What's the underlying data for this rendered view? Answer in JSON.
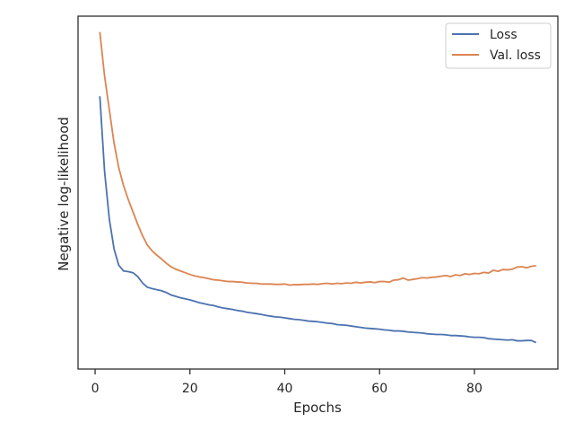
{
  "chart_data": {
    "type": "line",
    "title": "",
    "xlabel": "Epochs",
    "ylabel": "Negative log-likelihood",
    "xlim": [
      -3.6,
      97.6
    ],
    "ylim": [
      0,
      100
    ],
    "xticks": [
      0,
      20,
      40,
      60,
      80
    ],
    "yticks": [],
    "grid": false,
    "legend_position": "top-right",
    "x": [
      1,
      2,
      3,
      4,
      5,
      6,
      7,
      8,
      9,
      10,
      11,
      12,
      13,
      14,
      15,
      16,
      17,
      18,
      19,
      20,
      21,
      22,
      23,
      24,
      25,
      26,
      27,
      28,
      29,
      30,
      31,
      32,
      33,
      34,
      35,
      36,
      37,
      38,
      39,
      40,
      41,
      42,
      43,
      44,
      45,
      46,
      47,
      48,
      49,
      50,
      51,
      52,
      53,
      54,
      55,
      56,
      57,
      58,
      59,
      60,
      61,
      62,
      63,
      64,
      65,
      66,
      67,
      68,
      69,
      70,
      71,
      72,
      73,
      74,
      75,
      76,
      77,
      78,
      79,
      80,
      81,
      82,
      83,
      84,
      85,
      86,
      87,
      88,
      89,
      90,
      91,
      92,
      93
    ],
    "series": [
      {
        "name": "Loss",
        "color": "#4c72b0",
        "values": [
          77.3,
          56.0,
          42.5,
          34.0,
          29.4,
          27.8,
          27.6,
          27.3,
          26.2,
          24.4,
          23.2,
          22.8,
          22.5,
          22.2,
          21.7,
          21.0,
          20.6,
          20.2,
          19.9,
          19.6,
          19.2,
          18.8,
          18.5,
          18.2,
          18.0,
          17.6,
          17.3,
          17.1,
          16.9,
          16.6,
          16.4,
          16.1,
          15.9,
          15.7,
          15.5,
          15.2,
          15.0,
          14.8,
          14.7,
          14.5,
          14.3,
          14.1,
          14.0,
          13.8,
          13.6,
          13.5,
          13.4,
          13.2,
          13.0,
          12.9,
          12.6,
          12.5,
          12.4,
          12.2,
          12.0,
          11.8,
          11.6,
          11.5,
          11.4,
          11.3,
          11.1,
          11.0,
          10.8,
          10.8,
          10.7,
          10.5,
          10.4,
          10.3,
          10.2,
          10.0,
          9.9,
          9.8,
          9.8,
          9.7,
          9.5,
          9.5,
          9.4,
          9.3,
          9.1,
          9.0,
          9.0,
          8.9,
          8.6,
          8.5,
          8.4,
          8.3,
          8.2,
          8.3,
          8.0,
          8.0,
          8.1,
          8.1,
          7.5
        ]
      },
      {
        "name": "Val. loss",
        "color": "#dd8452",
        "values": [
          95.5,
          83.0,
          73.5,
          64.0,
          57.0,
          52.0,
          48.0,
          44.5,
          41.0,
          37.8,
          35.2,
          33.5,
          32.3,
          31.2,
          30.0,
          29.0,
          28.3,
          27.8,
          27.3,
          26.8,
          26.4,
          26.1,
          25.9,
          25.6,
          25.3,
          25.2,
          25.0,
          24.8,
          24.8,
          24.7,
          24.6,
          24.4,
          24.3,
          24.3,
          24.1,
          24.1,
          24.1,
          24.0,
          24.0,
          24.1,
          23.8,
          23.9,
          23.9,
          24.0,
          24.0,
          24.1,
          24.0,
          24.2,
          24.3,
          24.1,
          24.3,
          24.2,
          24.4,
          24.3,
          24.6,
          24.4,
          24.6,
          24.7,
          24.5,
          24.8,
          24.8,
          24.6,
          25.2,
          25.3,
          25.8,
          25.2,
          25.4,
          25.6,
          25.9,
          25.8,
          26.0,
          26.1,
          26.3,
          26.5,
          26.2,
          26.7,
          26.5,
          27.0,
          26.8,
          27.1,
          27.0,
          27.4,
          27.2,
          28.0,
          27.7,
          28.2,
          28.1,
          28.3,
          28.9,
          29.0,
          28.7,
          29.1,
          29.3
        ]
      }
    ]
  }
}
